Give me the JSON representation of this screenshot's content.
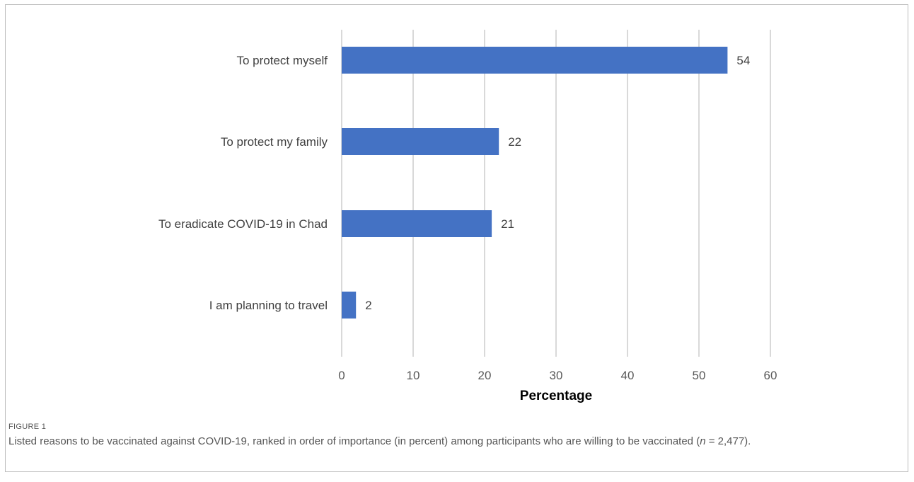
{
  "chart_data": {
    "type": "bar",
    "orientation": "horizontal",
    "categories": [
      "To protect myself",
      "To protect my family",
      "To eradicate COVID-19 in Chad",
      "I am planning to travel"
    ],
    "values": [
      54,
      22,
      21,
      2
    ],
    "data_labels": [
      "54",
      "22",
      "21",
      "2"
    ],
    "xlabel": "Percentage",
    "xlim": [
      0,
      60
    ],
    "x_ticks": [
      "0",
      "10",
      "20",
      "30",
      "40",
      "50",
      "60"
    ],
    "grid": true,
    "bar_color": "#4472c4",
    "grid_color": "#d9d9d9"
  },
  "caption": {
    "label": "FIGURE 1",
    "text_before": "Listed reasons to be vaccinated against COVID-19, ranked in order of importance (in percent) among participants who are willing to be vaccinated (",
    "italic_var": "n",
    "text_after": " = 2,477)."
  }
}
